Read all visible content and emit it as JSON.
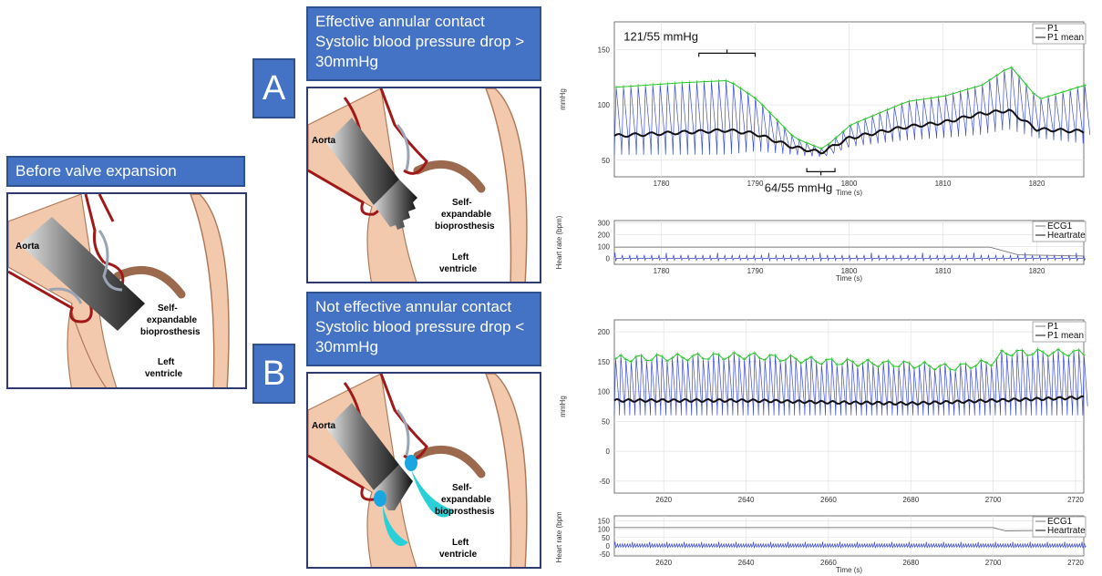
{
  "boxes": {
    "before": "Before valve expansion",
    "a_line1": "Effective annular contact",
    "a_line2": "Systolic blood pressure drop >",
    "a_line3": "30mmHg",
    "b_line1": "Not effective annular contact",
    "b_line2": "Systolic blood pressure drop <",
    "b_line3": "30mmHg",
    "letter_a": "A",
    "letter_b": "B"
  },
  "panel_labels": {
    "aorta": "Aorta",
    "self": "Self-",
    "expandable": "expandable",
    "bioprosthesis": "bioprosthesis",
    "left": "Left",
    "ventricle": "ventricle"
  },
  "colors": {
    "box_blue": "#4472c4",
    "aorta_red": "#a01818",
    "tissue": "#f2c9ad",
    "muscle": "#9b6a4e",
    "leak": "#29d0d8",
    "pressure_trace": "#3b4bd6",
    "systolic_trace": "#2bc52b",
    "mean_trace": "#111111"
  },
  "chart_data": [
    {
      "type": "line",
      "ylabel": "mmHg",
      "xlabel": "Time (s)",
      "xlim": [
        1775,
        1825
      ],
      "ylim": [
        35,
        175
      ],
      "yticks": [
        50,
        100,
        150
      ],
      "xticks": [
        1780,
        1790,
        1800,
        1810,
        1820
      ],
      "legend": [
        "P1",
        "P1 mean"
      ],
      "annotations": [
        "121/55 mmHg",
        "64/55 mmHg"
      ],
      "systolic": {
        "x": [
          1775,
          1782,
          1787,
          1790,
          1794,
          1797,
          1800,
          1806,
          1810,
          1814,
          1817,
          1820,
          1825
        ],
        "y": [
          116,
          120,
          122,
          105,
          70,
          60,
          82,
          103,
          108,
          118,
          135,
          105,
          118
        ]
      },
      "diastolic": {
        "x": [
          1775,
          1782,
          1787,
          1790,
          1794,
          1797,
          1800,
          1806,
          1810,
          1814,
          1817,
          1820,
          1825
        ],
        "y": [
          55,
          55,
          55,
          58,
          55,
          53,
          62,
          68,
          70,
          73,
          78,
          70,
          65
        ]
      },
      "mean": {
        "x": [
          1775,
          1782,
          1787,
          1790,
          1794,
          1797,
          1800,
          1806,
          1810,
          1814,
          1817,
          1820,
          1825
        ],
        "y": [
          72,
          75,
          77,
          74,
          62,
          57,
          70,
          80,
          84,
          92,
          95,
          78,
          76
        ]
      }
    },
    {
      "type": "line",
      "ylabel": "Heart rate (bpm)",
      "xlabel": "Time (s)",
      "xlim": [
        1775,
        1825
      ],
      "ylim": [
        -50,
        320
      ],
      "yticks": [
        0,
        100,
        200,
        300
      ],
      "xticks": [
        1780,
        1790,
        1800,
        1810,
        1820
      ],
      "legend": [
        "ECG1",
        "Heartrate"
      ],
      "heartrate": {
        "x": [
          1775,
          1815,
          1818,
          1825
        ],
        "y": [
          95,
          95,
          30,
          20
        ]
      }
    },
    {
      "type": "line",
      "ylabel": "mmHg",
      "xlabel": "",
      "xlim": [
        2608,
        2722
      ],
      "ylim": [
        -70,
        220
      ],
      "yticks": [
        -50,
        0,
        50,
        100,
        150,
        200
      ],
      "xticks": [
        2620,
        2640,
        2660,
        2680,
        2700,
        2720
      ],
      "legend": [
        "P1",
        "P1 mean"
      ],
      "systolic": {
        "x": [
          2608,
          2640,
          2660,
          2680,
          2690,
          2700,
          2702,
          2722
        ],
        "y": [
          155,
          160,
          150,
          145,
          140,
          150,
          165,
          165
        ]
      },
      "diastolic": {
        "x": [
          2608,
          2640,
          2660,
          2680,
          2700,
          2722
        ],
        "y": [
          60,
          60,
          60,
          60,
          60,
          60
        ]
      },
      "mean": {
        "x": [
          2608,
          2640,
          2660,
          2680,
          2700,
          2722
        ],
        "y": [
          85,
          85,
          82,
          80,
          85,
          90
        ]
      }
    },
    {
      "type": "line",
      "ylabel": "Heart rate (bpm)",
      "xlabel": "Time (s)",
      "xlim": [
        2608,
        2722
      ],
      "ylim": [
        -60,
        180
      ],
      "yticks": [
        -50,
        0,
        50,
        100,
        150
      ],
      "xticks": [
        2620,
        2640,
        2660,
        2680,
        2700,
        2720
      ],
      "legend": [
        "ECG1",
        "Heartrate"
      ],
      "heartrate": {
        "x": [
          2608,
          2700,
          2703,
          2722
        ],
        "y": [
          110,
          110,
          90,
          95
        ]
      }
    }
  ]
}
